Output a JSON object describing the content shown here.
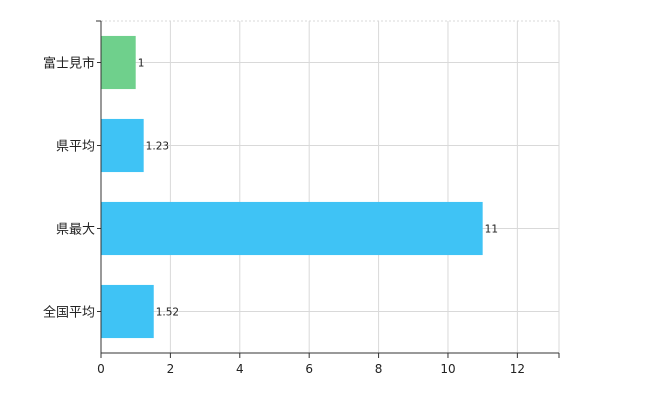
{
  "chart_data": {
    "type": "bar",
    "orientation": "horizontal",
    "categories": [
      "富士見市",
      "県平均",
      "県最大",
      "全国平均"
    ],
    "values": [
      1,
      1.23,
      11,
      1.52
    ],
    "value_labels": [
      "1",
      "1.23",
      "11",
      "1.52"
    ],
    "bar_colors": [
      "#6fd08c",
      "#3fc3f5",
      "#3fc3f5",
      "#3fc3f5"
    ],
    "xlim": [
      0,
      13.2
    ],
    "xticks": [
      0,
      2,
      4,
      6,
      8,
      10,
      12
    ],
    "xtick_labels": [
      "0",
      "2",
      "4",
      "6",
      "8",
      "10",
      "12"
    ],
    "grid": true,
    "grid_color": "#d9d9d9"
  }
}
